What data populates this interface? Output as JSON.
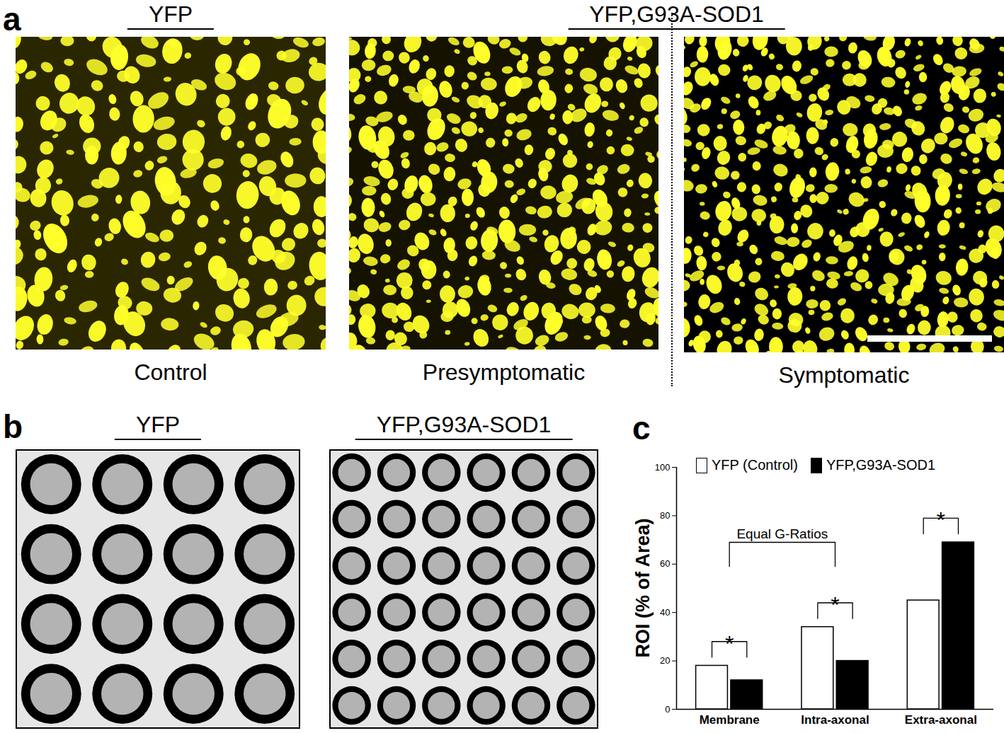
{
  "panel_labels": [
    "a",
    "b",
    "c"
  ],
  "panel_a": {
    "groups": [
      {
        "label": "YFP",
        "images": [
          "Control"
        ]
      },
      {
        "label": "YFP,G93A-SOD1",
        "images": [
          "Presymptomatic",
          "Symptomatic"
        ]
      }
    ]
  },
  "panel_b": {
    "boxes": [
      {
        "label": "YFP",
        "rows": 4,
        "columns": 4
      },
      {
        "label": "YFP,G93A-SOD1",
        "rows": 6,
        "columns": 6
      }
    ]
  },
  "chart_data": {
    "type": "bar",
    "y_label": "ROI (% of Area)",
    "categories": [
      "Membrane",
      "Intra-axonal",
      "Extra-axonal"
    ],
    "series": [
      {
        "name": "YFP (Control)",
        "color": "#ffffff",
        "values": [
          18,
          34,
          45
        ]
      },
      {
        "name": "YFP,G93A-SOD1",
        "color": "#000000",
        "values": [
          12,
          20,
          69
        ]
      }
    ],
    "ylim": [
      0,
      100
    ],
    "yticks": [
      0,
      20,
      40,
      60,
      80,
      100
    ],
    "legend": "top",
    "annotations": [
      {
        "text": "Equal G-Ratios",
        "from": "Membrane",
        "to": "Intra-axonal"
      },
      {
        "text": "*",
        "category": "Membrane"
      },
      {
        "text": "*",
        "category": "Intra-axonal"
      },
      {
        "text": "*",
        "category": "Extra-axonal"
      }
    ]
  }
}
